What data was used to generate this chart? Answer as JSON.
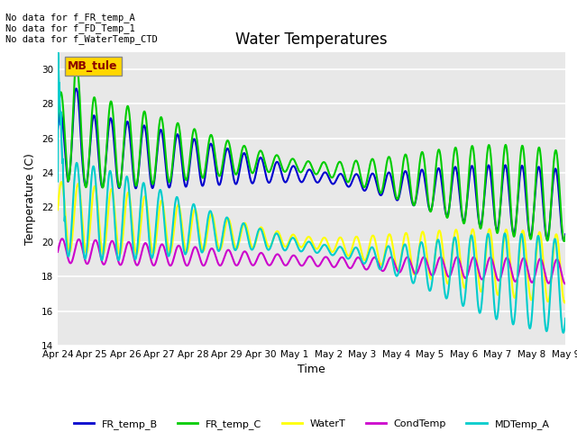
{
  "title": "Water Temperatures",
  "ylabel": "Temperature (C)",
  "xlabel": "Time",
  "ylim": [
    14,
    31
  ],
  "yticks": [
    14,
    16,
    18,
    20,
    22,
    24,
    26,
    28,
    30
  ],
  "x_labels": [
    "Apr 24",
    "Apr 25",
    "Apr 26",
    "Apr 27",
    "Apr 28",
    "Apr 29",
    "Apr 30",
    "May 1",
    "May 2",
    "May 3",
    "May 4",
    "May 5",
    "May 6",
    "May 7",
    "May 8",
    "May 9"
  ],
  "text_lines": [
    "No data for f_FR_temp_A",
    "No data for f_FD_Temp_1",
    "No data for f_WaterTemp_CTD"
  ],
  "annotation_text": "MB_tule",
  "annotation_color": "#8B0000",
  "annotation_bg": "#FFD700",
  "series": {
    "FR_temp_B": {
      "color": "#0000CD",
      "lw": 1.5
    },
    "FR_temp_C": {
      "color": "#00CC00",
      "lw": 1.5
    },
    "WaterT": {
      "color": "#FFFF00",
      "lw": 1.5
    },
    "CondTemp": {
      "color": "#CC00CC",
      "lw": 1.5
    },
    "MDTemp_A": {
      "color": "#00CCCC",
      "lw": 1.5
    }
  },
  "bg_color": "#E8E8E8",
  "grid_color": "#FFFFFF",
  "title_fontsize": 12,
  "axis_fontsize": 9,
  "tick_fontsize": 7.5
}
